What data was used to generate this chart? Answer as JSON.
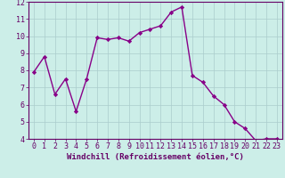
{
  "x": [
    0,
    1,
    2,
    3,
    4,
    5,
    6,
    7,
    8,
    9,
    10,
    11,
    12,
    13,
    14,
    15,
    16,
    17,
    18,
    19,
    20,
    21,
    22,
    23
  ],
  "y": [
    7.9,
    8.8,
    6.6,
    7.5,
    5.6,
    7.5,
    9.9,
    9.8,
    9.9,
    9.7,
    10.2,
    10.4,
    10.6,
    11.4,
    11.7,
    7.7,
    7.3,
    6.5,
    6.0,
    5.0,
    4.6,
    3.9,
    4.0,
    4.0
  ],
  "line_color": "#880088",
  "marker": "D",
  "marker_size": 2.2,
  "bg_color": "#cceee8",
  "grid_color": "#aacccc",
  "axis_color": "#660066",
  "xlabel": "Windchill (Refroidissement éolien,°C)",
  "ylim": [
    4,
    12
  ],
  "xlim": [
    -0.5,
    23.5
  ],
  "yticks": [
    4,
    5,
    6,
    7,
    8,
    9,
    10,
    11,
    12
  ],
  "xticks": [
    0,
    1,
    2,
    3,
    4,
    5,
    6,
    7,
    8,
    9,
    10,
    11,
    12,
    13,
    14,
    15,
    16,
    17,
    18,
    19,
    20,
    21,
    22,
    23
  ],
  "xtick_labels": [
    "0",
    "1",
    "2",
    "3",
    "4",
    "5",
    "6",
    "7",
    "8",
    "9",
    "10",
    "11",
    "12",
    "13",
    "14",
    "15",
    "16",
    "17",
    "18",
    "19",
    "20",
    "21",
    "22",
    "23"
  ],
  "tick_fontsize": 6.0,
  "xlabel_fontsize": 6.5,
  "linewidth": 1.0
}
